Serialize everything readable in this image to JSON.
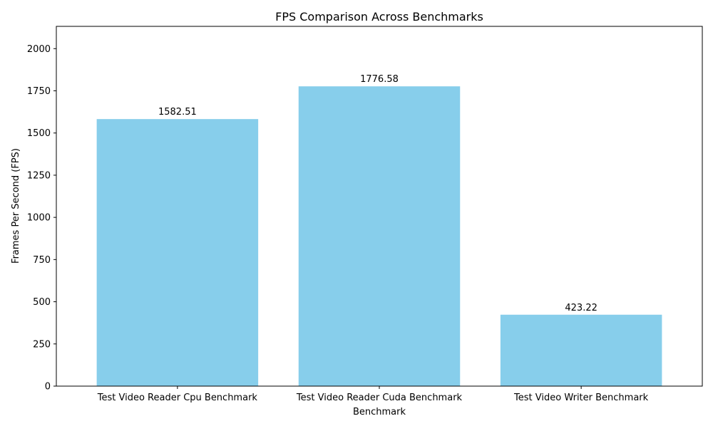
{
  "chart_data": {
    "type": "bar",
    "title": "FPS Comparison Across Benchmarks",
    "xlabel": "Benchmark",
    "ylabel": "Frames Per Second (FPS)",
    "categories": [
      "Test Video Reader Cpu Benchmark",
      "Test Video Reader Cuda Benchmark",
      "Test Video Writer Benchmark"
    ],
    "values": [
      1582.51,
      1776.58,
      423.22
    ],
    "value_labels": [
      "1582.51",
      "1776.58",
      "423.22"
    ],
    "ylim": [
      0,
      2132
    ],
    "yticks": [
      0,
      250,
      500,
      750,
      1000,
      1250,
      1500,
      1750,
      2000
    ],
    "bar_color": "#87ceeb",
    "grid": false,
    "legend": "none"
  }
}
